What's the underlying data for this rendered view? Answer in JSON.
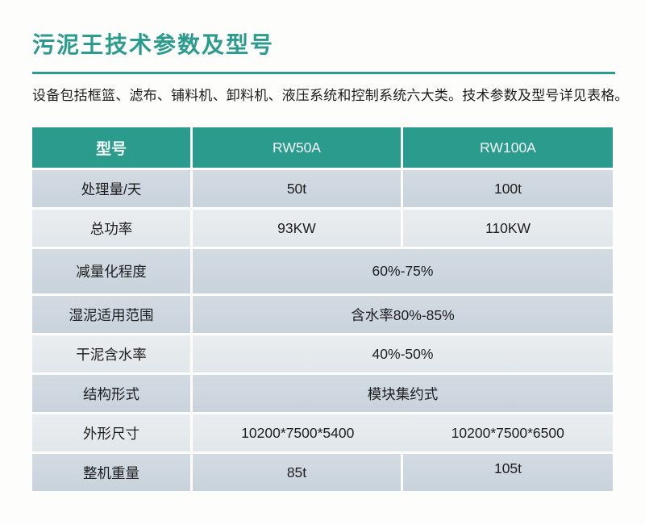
{
  "page": {
    "title": "污泥王技术参数及型号",
    "intro": "设备包括框篮、滤布、铺料机、卸料机、液压系统和控制系统六大类。技术参数及型号详见表格。"
  },
  "colors": {
    "accent_teal": "#2a9b8d",
    "row_dark": "#c9d3dc",
    "row_light": "#e2e7eb",
    "header_text": "#f2f7f7",
    "body_text": "#1e1e1e",
    "page_bg": "#fdfdfb"
  },
  "table": {
    "header": {
      "col1": "型号",
      "col2": "RW50A",
      "col3": "RW100A"
    },
    "rows": [
      {
        "label": "处理量/天",
        "rw50a": "50t",
        "rw100a": "100t"
      },
      {
        "label": "总功率",
        "rw50a": "93KW",
        "rw100a": "110KW"
      },
      {
        "label": "减量化程度",
        "merged": "60%-75%"
      },
      {
        "label": "湿泥适用范围",
        "merged": "含水率80%-85%"
      },
      {
        "label": "干泥含水率",
        "merged": "40%-50%"
      },
      {
        "label": "结构形式",
        "merged": "模块集约式"
      },
      {
        "label": "外形尺寸",
        "rw50a": "10200*7500*5400",
        "rw100a": "10200*7500*6500"
      },
      {
        "label": "整机重量",
        "rw50a": "85t",
        "rw100a": "105t"
      }
    ]
  }
}
